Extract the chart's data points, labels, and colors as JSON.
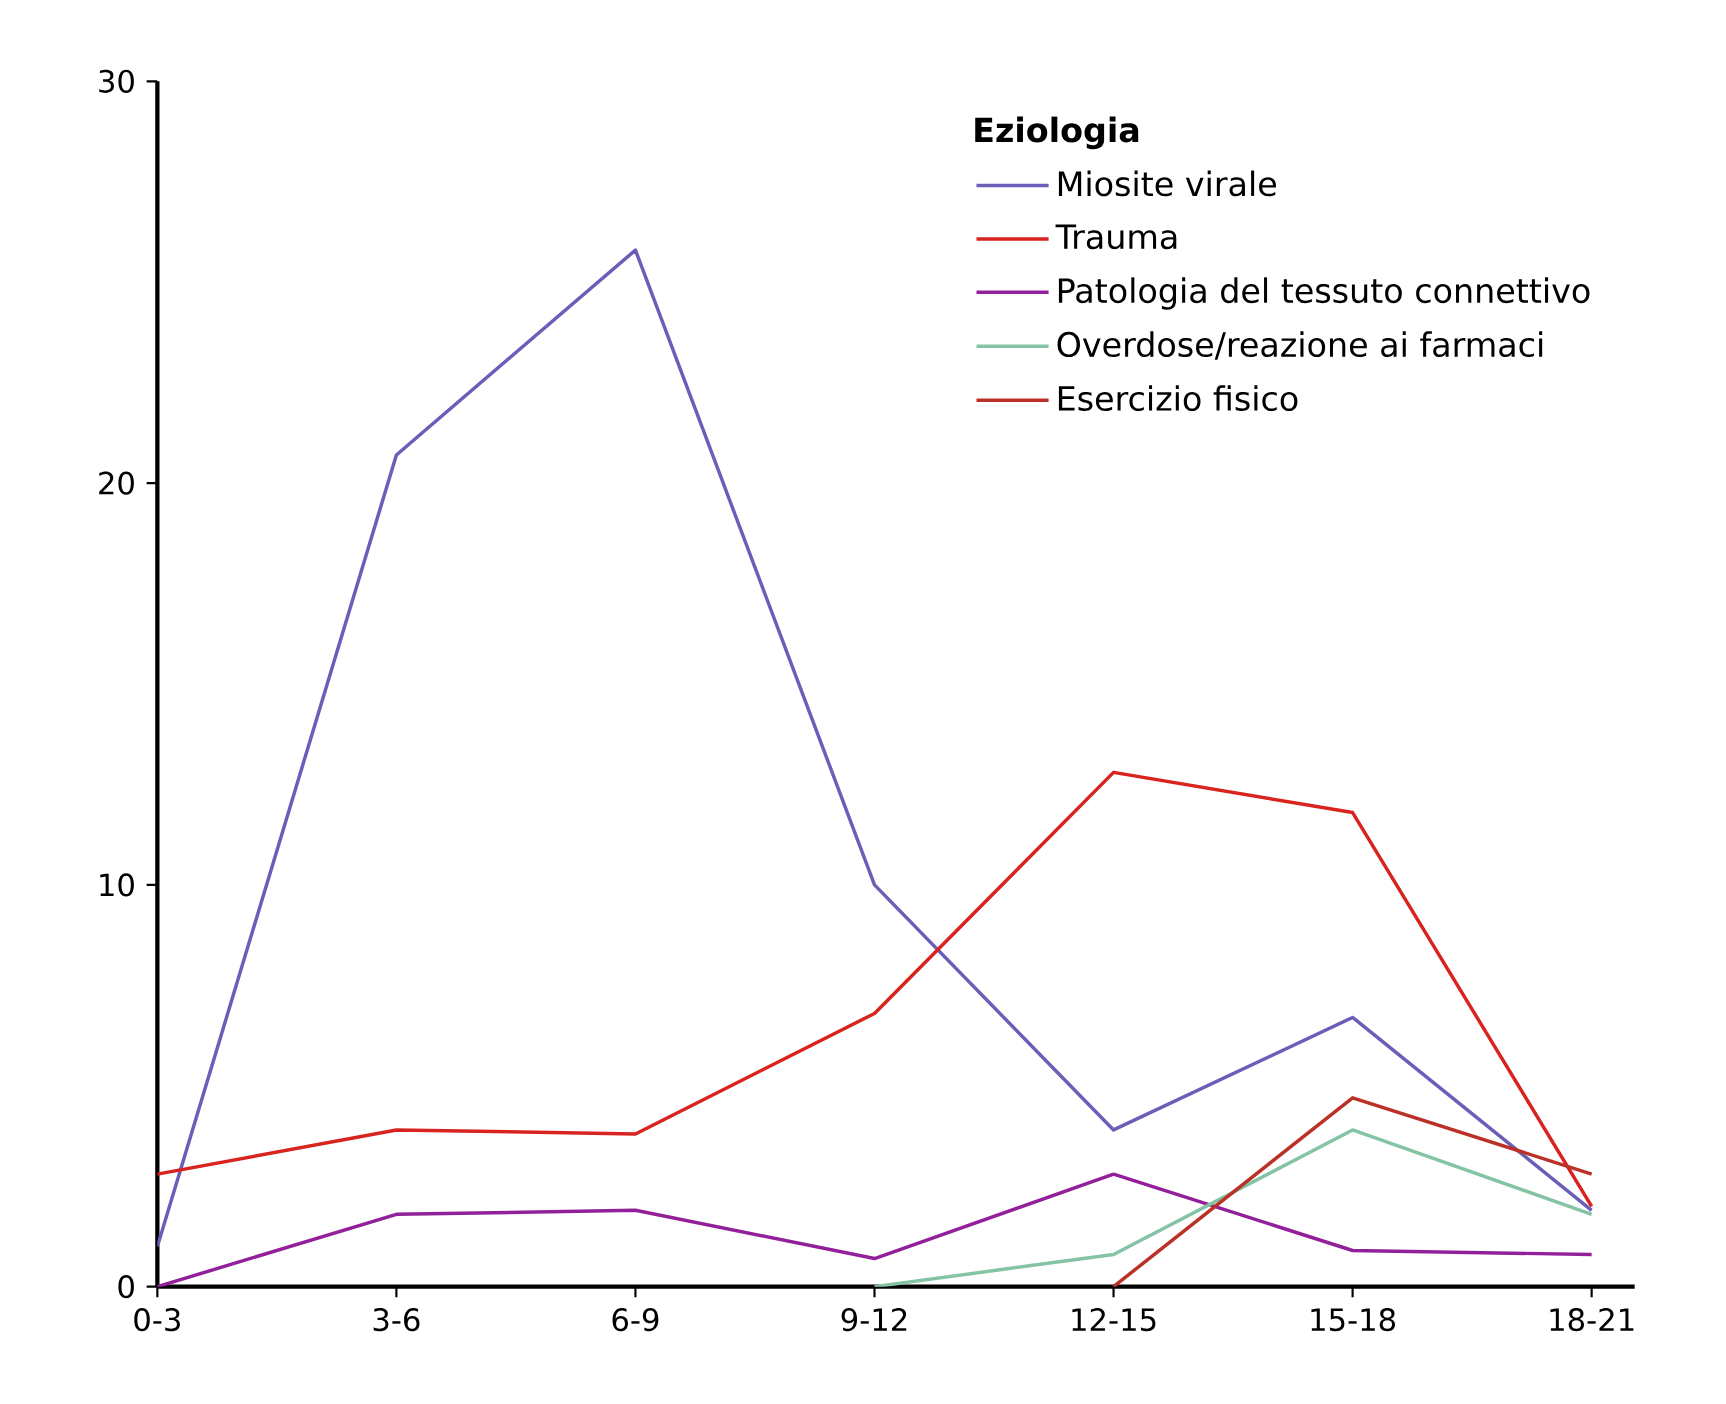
{
  "chart_data": {
    "type": "line",
    "legend_title": "Eziologia",
    "categories": [
      "0-3",
      "3-6",
      "6-9",
      "9-12",
      "12-15",
      "15-18",
      "18-21"
    ],
    "series": [
      {
        "name": "Miosite virale",
        "color": "#6a5fb8",
        "values": [
          1.0,
          20.7,
          25.8,
          10.0,
          3.9,
          6.7,
          1.9
        ]
      },
      {
        "name": "Trauma",
        "color": "#d8231f",
        "values": [
          2.8,
          3.9,
          3.8,
          6.8,
          12.8,
          11.8,
          2.0
        ]
      },
      {
        "name": "Patologia del tessuto connettivo",
        "color": "#92209a",
        "values": [
          0,
          1.8,
          1.9,
          0.7,
          2.8,
          0.9,
          0.8
        ]
      },
      {
        "name": "Overdose/reazione ai farmaci",
        "color": "#84c4a4",
        "values": [
          null,
          null,
          null,
          0,
          0.8,
          3.9,
          1.8
        ]
      },
      {
        "name": "Esercizio fisico",
        "color": "#bb3128",
        "values": [
          null,
          null,
          null,
          null,
          0,
          4.7,
          2.8
        ]
      }
    ],
    "ylim": [
      0,
      30
    ],
    "yticks": [
      0,
      10,
      20,
      30
    ],
    "grid": false,
    "legend": "top right",
    "marker": "none",
    "line_style": "solid"
  }
}
